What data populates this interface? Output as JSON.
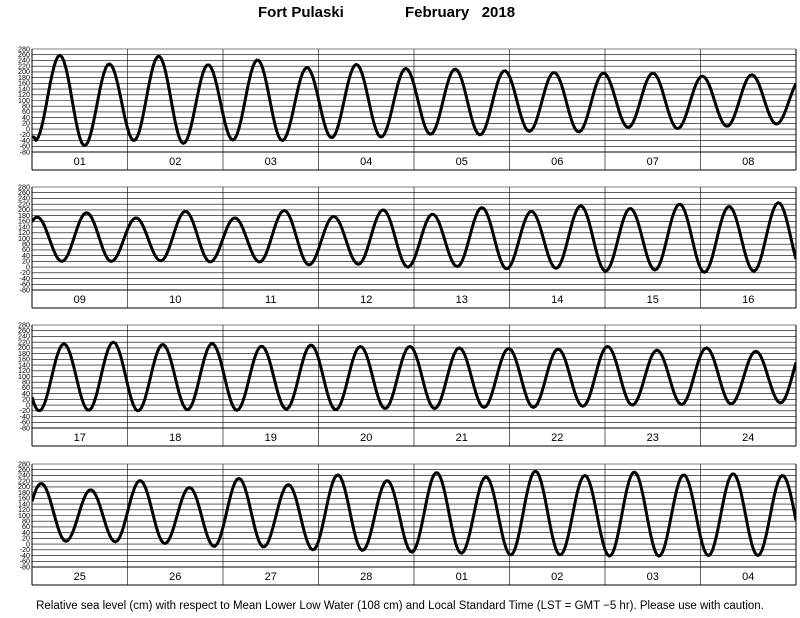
{
  "header": {
    "station": "Fort Pulaski",
    "month_year": "February   2018"
  },
  "footer": {
    "note": "Relative sea level (cm) with respect to Mean Lower Low Water (108 cm) and Local Standard Time (LST = GMT −5 hr). Please use with caution."
  },
  "chart_data": {
    "type": "line",
    "title": "Fort Pulaski          February   2018",
    "ylabel": "Relative sea level (cm)",
    "ylim": [
      -80,
      280
    ],
    "yticks": [
      -80,
      -60,
      -40,
      -20,
      0,
      20,
      40,
      60,
      80,
      100,
      120,
      140,
      160,
      180,
      200,
      220,
      240,
      260,
      280
    ],
    "grid": true,
    "unit": "cm",
    "series_color": "#000000",
    "series_description": "Predicted tide, 24.8h lunar day with two high and two low waters per day; one panel = 8 days",
    "days": [
      {
        "label": "01",
        "highs": [
          258,
          228
        ],
        "lows": [
          -58,
          -40
        ]
      },
      {
        "label": "02",
        "highs": [
          255,
          225
        ],
        "lows": [
          -50,
          -38
        ]
      },
      {
        "label": "03",
        "highs": [
          242,
          215
        ],
        "lows": [
          -40,
          -30
        ]
      },
      {
        "label": "04",
        "highs": [
          226,
          212
        ],
        "lows": [
          -28,
          -18
        ]
      },
      {
        "label": "05",
        "highs": [
          210,
          204
        ],
        "lows": [
          -20,
          -8
        ]
      },
      {
        "label": "06",
        "highs": [
          198,
          196
        ],
        "lows": [
          -10,
          6
        ]
      },
      {
        "label": "07",
        "highs": [
          196,
          185
        ],
        "lows": [
          2,
          10
        ]
      },
      {
        "label": "08",
        "highs": [
          190,
          175
        ],
        "lows": [
          18,
          20
        ]
      },
      {
        "label": "09",
        "highs": [
          190,
          172
        ],
        "lows": [
          20,
          22
        ]
      },
      {
        "label": "10",
        "highs": [
          195,
          172
        ],
        "lows": [
          18,
          18
        ]
      },
      {
        "label": "11",
        "highs": [
          198,
          177
        ],
        "lows": [
          8,
          10
        ]
      },
      {
        "label": "12",
        "highs": [
          200,
          185
        ],
        "lows": [
          0,
          2
        ]
      },
      {
        "label": "13",
        "highs": [
          208,
          195
        ],
        "lows": [
          -6,
          -4
        ]
      },
      {
        "label": "14",
        "highs": [
          214,
          205
        ],
        "lows": [
          -14,
          -10
        ]
      },
      {
        "label": "15",
        "highs": [
          220,
          212
        ],
        "lows": [
          -18,
          -14
        ]
      },
      {
        "label": "16",
        "highs": [
          225,
          214
        ],
        "lows": [
          -20,
          -18
        ]
      },
      {
        "label": "17",
        "highs": [
          220,
          212
        ],
        "lows": [
          -20,
          -16
        ]
      },
      {
        "label": "18",
        "highs": [
          215,
          206
        ],
        "lows": [
          -18,
          -14
        ]
      },
      {
        "label": "19",
        "highs": [
          210,
          205
        ],
        "lows": [
          -16,
          -12
        ]
      },
      {
        "label": "20",
        "highs": [
          205,
          200
        ],
        "lows": [
          -12,
          -8
        ]
      },
      {
        "label": "21",
        "highs": [
          198,
          196
        ],
        "lows": [
          -8,
          -4
        ]
      },
      {
        "label": "22",
        "highs": [
          205,
          192
        ],
        "lows": [
          0,
          2
        ]
      },
      {
        "label": "23",
        "highs": [
          200,
          188
        ],
        "lows": [
          4,
          8
        ]
      },
      {
        "label": "24",
        "highs": [
          212,
          190
        ],
        "lows": [
          10,
          8
        ]
      },
      {
        "label": "25",
        "highs": [
          222,
          198
        ],
        "lows": [
          2,
          -8
        ]
      },
      {
        "label": "26",
        "highs": [
          230,
          208
        ],
        "lows": [
          -10,
          -20
        ]
      },
      {
        "label": "27",
        "highs": [
          242,
          222
        ],
        "lows": [
          -22,
          -28
        ]
      },
      {
        "label": "28",
        "highs": [
          250,
          235
        ],
        "lows": [
          -32,
          -38
        ]
      },
      {
        "label": "01",
        "highs": [
          255,
          240
        ],
        "lows": [
          -38,
          -42
        ]
      },
      {
        "label": "02",
        "highs": [
          252,
          242
        ],
        "lows": [
          -42,
          -40
        ]
      },
      {
        "label": "03",
        "highs": [
          246,
          240
        ],
        "lows": [
          -40,
          -36
        ]
      },
      {
        "label": "04",
        "highs": [
          240,
          232
        ],
        "lows": [
          -34,
          -28
        ]
      }
    ]
  }
}
